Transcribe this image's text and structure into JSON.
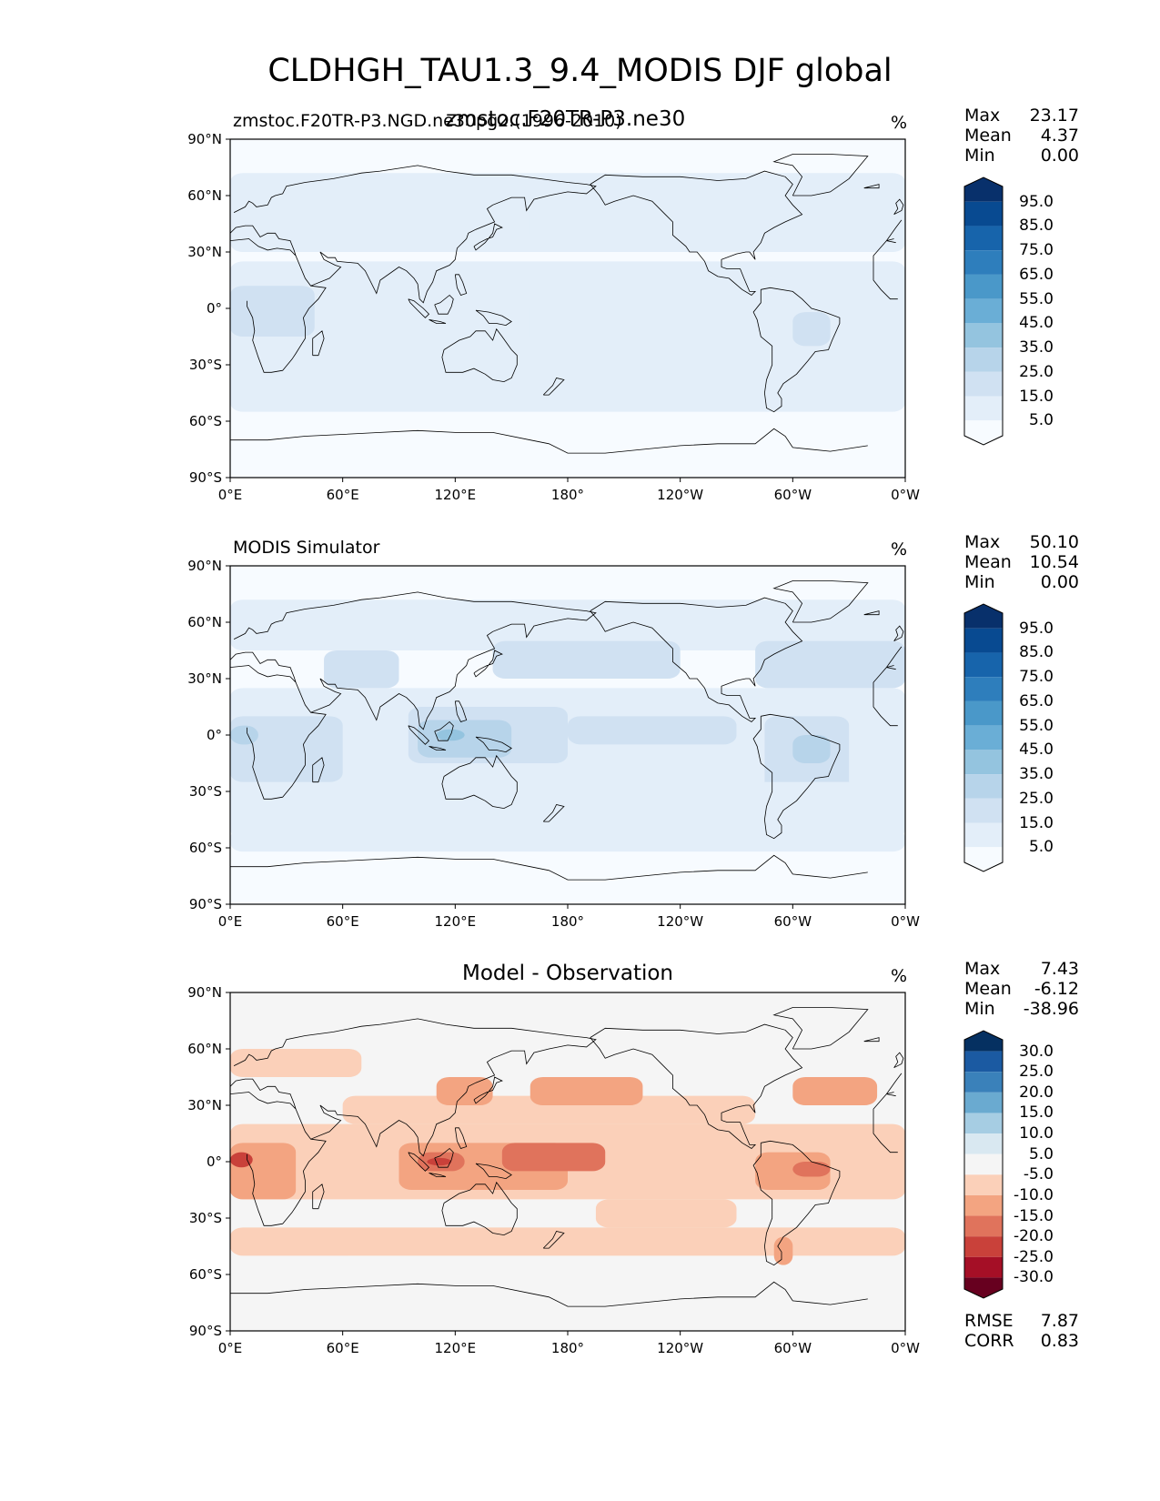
{
  "figure": {
    "title": "CLDHGH_TAU1.3_9.4_MODIS DJF global",
    "overlap_title": "zmstoc.F20TR-P3.ne30",
    "units": "%"
  },
  "chart_data": [
    {
      "type": "heatmap",
      "name": "test",
      "title": "zmstoc.F20TR-P3.NGD.ne30pg2.(1996-2010)",
      "units": "%",
      "projection": "PlateCarree, central longitude 180",
      "xlim": [
        0,
        360
      ],
      "ylim": [
        -90,
        90
      ],
      "x_ticks": [
        "0°E",
        "60°E",
        "120°E",
        "180°",
        "120°W",
        "60°W",
        "0°W"
      ],
      "y_ticks": [
        "90°N",
        "60°N",
        "30°N",
        "0°",
        "30°S",
        "60°S",
        "90°S"
      ],
      "stats": {
        "Max": "23.17",
        "Mean": "4.37",
        "Min": "0.00"
      },
      "colormap": "Blues",
      "levels": [
        "5.0",
        "15.0",
        "25.0",
        "35.0",
        "45.0",
        "55.0",
        "65.0",
        "75.0",
        "85.0",
        "95.0"
      ],
      "colors": [
        "#f7fbff",
        "#e3eef9",
        "#d0e1f2",
        "#b7d4ea",
        "#94c4df",
        "#6aaed6",
        "#4a98c9",
        "#2e7ebc",
        "#1764ab",
        "#084a91",
        "#08306b"
      ]
    },
    {
      "type": "heatmap",
      "name": "reference",
      "title": "MODIS Simulator",
      "units": "%",
      "projection": "PlateCarree, central longitude 180",
      "xlim": [
        0,
        360
      ],
      "ylim": [
        -90,
        90
      ],
      "x_ticks": [
        "0°E",
        "60°E",
        "120°E",
        "180°",
        "120°W",
        "60°W",
        "0°W"
      ],
      "y_ticks": [
        "90°N",
        "60°N",
        "30°N",
        "0°",
        "30°S",
        "60°S",
        "90°S"
      ],
      "stats": {
        "Max": "50.10",
        "Mean": "10.54",
        "Min": "0.00"
      },
      "colormap": "Blues",
      "levels": [
        "5.0",
        "15.0",
        "25.0",
        "35.0",
        "45.0",
        "55.0",
        "65.0",
        "75.0",
        "85.0",
        "95.0"
      ],
      "colors": [
        "#f7fbff",
        "#e3eef9",
        "#d0e1f2",
        "#b7d4ea",
        "#94c4df",
        "#6aaed6",
        "#4a98c9",
        "#2e7ebc",
        "#1764ab",
        "#084a91",
        "#08306b"
      ]
    },
    {
      "type": "heatmap",
      "name": "difference",
      "title": "Model - Observation",
      "units": "%",
      "projection": "PlateCarree, central longitude 180",
      "xlim": [
        0,
        360
      ],
      "ylim": [
        -90,
        90
      ],
      "x_ticks": [
        "0°E",
        "60°E",
        "120°E",
        "180°",
        "120°W",
        "60°W",
        "0°W"
      ],
      "y_ticks": [
        "90°N",
        "60°N",
        "30°N",
        "0°",
        "30°S",
        "60°S",
        "90°S"
      ],
      "stats": {
        "Max": "7.43",
        "Mean": "-6.12",
        "Min": "-38.96"
      },
      "metrics": {
        "RMSE": "7.87",
        "CORR": "0.83"
      },
      "colormap": "RdBu",
      "levels": [
        "-30.0",
        "-25.0",
        "-20.0",
        "-15.0",
        "-10.0",
        "-5.0",
        "5.0",
        "10.0",
        "15.0",
        "20.0",
        "25.0",
        "30.0"
      ],
      "colors": [
        "#67001f",
        "#a50f26",
        "#c9413a",
        "#e0735c",
        "#f3a481",
        "#fbd0b9",
        "#f5f5f5",
        "#d9e8f1",
        "#a6cde3",
        "#6aaad0",
        "#3a81ba",
        "#1b5aa2",
        "#053061"
      ]
    }
  ]
}
